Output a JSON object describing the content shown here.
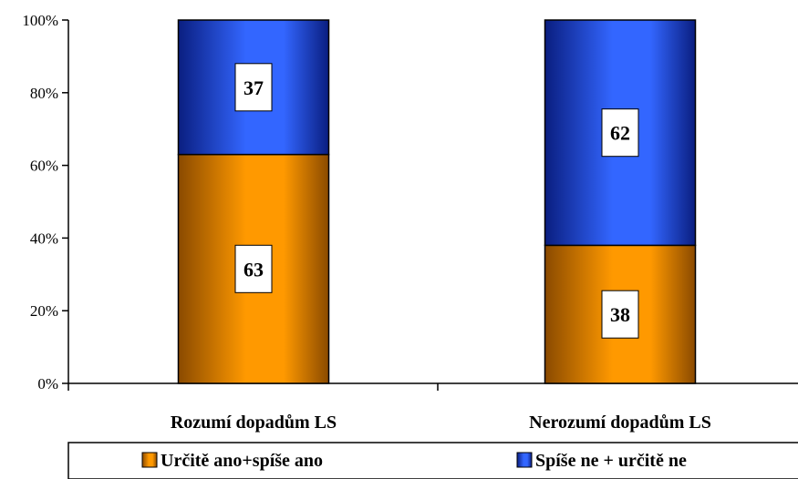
{
  "chart_data": {
    "type": "bar",
    "stacked": true,
    "categories": [
      "Rozumí dopadům LS",
      "Nerozumí dopadům LS"
    ],
    "series": [
      {
        "name": "Určitě ano+spíše ano",
        "values": [
          63,
          38
        ],
        "color": "#FF9900",
        "dark": "#8A4A00"
      },
      {
        "name": "Spíše ne + určitě ne",
        "values": [
          37,
          62
        ],
        "color": "#3366FF",
        "dark": "#0A1E80"
      }
    ],
    "yticks": [
      "0%",
      "20%",
      "40%",
      "60%",
      "80%",
      "100%"
    ],
    "ylim": [
      0,
      100
    ],
    "legend_position": "bottom",
    "grid": false
  }
}
